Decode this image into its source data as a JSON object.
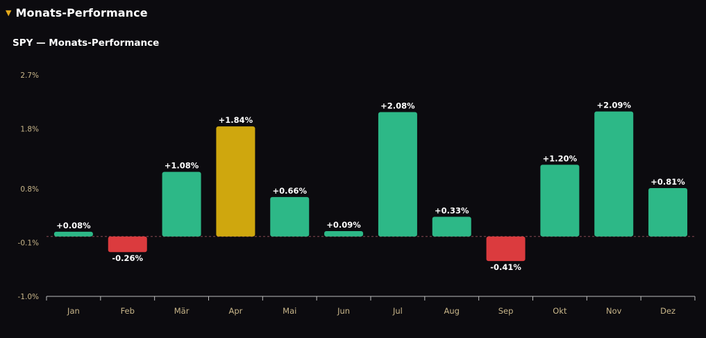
{
  "section": {
    "title": "Monats-Performance",
    "caret_icon": "triangle-down-icon",
    "caret_color": "#e3a81b"
  },
  "chart_data": {
    "type": "bar",
    "title": "SPY — Monats-Performance",
    "categories": [
      "Jan",
      "Feb",
      "Mär",
      "Apr",
      "Mai",
      "Jun",
      "Jul",
      "Aug",
      "Sep",
      "Okt",
      "Nov",
      "Dez"
    ],
    "values": [
      0.08,
      -0.26,
      1.08,
      1.84,
      0.66,
      0.09,
      2.08,
      0.33,
      -0.41,
      1.2,
      2.09,
      0.81
    ],
    "value_labels": [
      "+0.08%",
      "-0.26%",
      "+1.08%",
      "+1.84%",
      "+0.66%",
      "+0.09%",
      "+2.08%",
      "+0.33%",
      "-0.41%",
      "+1.20%",
      "+2.09%",
      "+0.81%"
    ],
    "highlight_category": "Apr",
    "yticks": [
      2.7,
      1.8,
      0.8,
      -0.1,
      -1.0
    ],
    "ytick_labels": [
      "2.7%",
      "1.8%",
      "0.8%",
      "-0.1%",
      "-1.0%"
    ],
    "ylim": [
      -1.0,
      2.7
    ],
    "baseline": 0,
    "xlabel": "",
    "ylabel": "",
    "grid": false,
    "colors": {
      "positive": "#2db887",
      "negative": "#db3b3e",
      "highlight": "#cfa70e",
      "baseline": "#8a4a55",
      "axis": "#bdbdbd",
      "tick_label": "#c9b68a",
      "value_label": "#ffffff"
    }
  }
}
